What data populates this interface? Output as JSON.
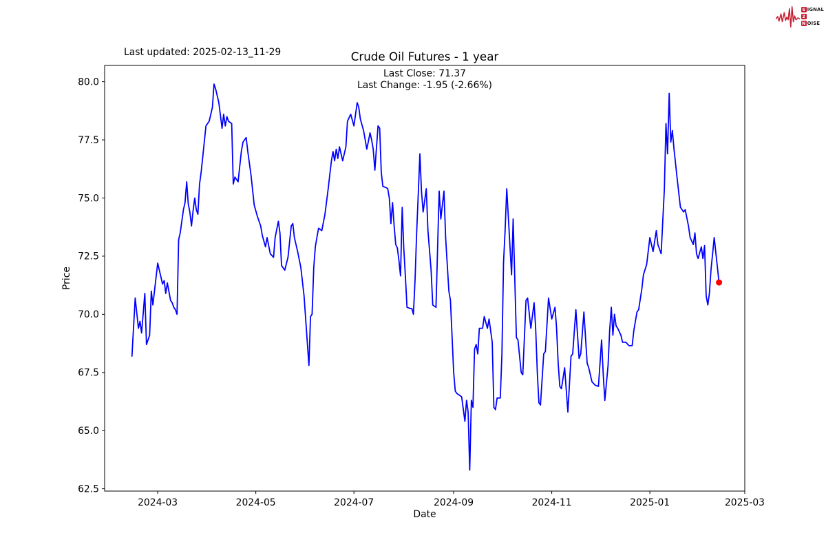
{
  "header": {
    "last_updated": "Last updated: 2025-02-13_11-29",
    "title": "Crude Oil Futures - 1 year",
    "subtitle_line1": "Last Close: 71.37",
    "subtitle_line2": "Last Change: -1.95 (-2.66%)"
  },
  "logo": {
    "signal_initial": "S",
    "signal_rest": "IGNAL",
    "middle": "2",
    "noise_initial": "N",
    "noise_rest": "OISE",
    "red": "#c41e2e",
    "text_color": "#1a1a1a"
  },
  "chart_data": {
    "type": "line",
    "title": "Crude Oil Futures - 1 year",
    "xlabel": "Date",
    "ylabel": "Price",
    "grid": false,
    "legend": "none",
    "last_close": 71.37,
    "last_change": "-1.95 (-2.66%)",
    "xlim": [
      "2024-01-28",
      "2025-03-01"
    ],
    "ylim": [
      62.4,
      80.7
    ],
    "yticks": [
      62.5,
      65.0,
      67.5,
      70.0,
      72.5,
      75.0,
      77.5,
      80.0
    ],
    "xticks": [
      {
        "date": "2024-03-01",
        "label": "2024-03"
      },
      {
        "date": "2024-05-01",
        "label": "2024-05"
      },
      {
        "date": "2024-07-01",
        "label": "2024-07"
      },
      {
        "date": "2024-09-01",
        "label": "2024-09"
      },
      {
        "date": "2024-11-01",
        "label": "2024-11"
      },
      {
        "date": "2025-01-01",
        "label": "2025-01"
      },
      {
        "date": "2025-03-01",
        "label": "2025-03"
      }
    ],
    "marker_color": "#ff0000",
    "series": [
      {
        "name": "Crude Oil Futures price",
        "color": "#0000ff",
        "points": [
          [
            "2024-02-14",
            68.2
          ],
          [
            "2024-02-16",
            70.7
          ],
          [
            "2024-02-18",
            69.4
          ],
          [
            "2024-02-19",
            69.7
          ],
          [
            "2024-02-20",
            69.2
          ],
          [
            "2024-02-22",
            70.9
          ],
          [
            "2024-02-23",
            68.7
          ],
          [
            "2024-02-25",
            69.1
          ],
          [
            "2024-02-26",
            71.0
          ],
          [
            "2024-02-27",
            70.4
          ],
          [
            "2024-03-01",
            72.2
          ],
          [
            "2024-03-03",
            71.6
          ],
          [
            "2024-03-04",
            71.3
          ],
          [
            "2024-03-05",
            71.45
          ],
          [
            "2024-03-06",
            70.9
          ],
          [
            "2024-03-07",
            71.35
          ],
          [
            "2024-03-09",
            70.6
          ],
          [
            "2024-03-10",
            70.5
          ],
          [
            "2024-03-11",
            70.3
          ],
          [
            "2024-03-12",
            70.2
          ],
          [
            "2024-03-13",
            70.0
          ],
          [
            "2024-03-14",
            73.2
          ],
          [
            "2024-03-15",
            73.5
          ],
          [
            "2024-03-17",
            74.5
          ],
          [
            "2024-03-18",
            74.8
          ],
          [
            "2024-03-19",
            75.7
          ],
          [
            "2024-03-20",
            74.75
          ],
          [
            "2024-03-21",
            74.4
          ],
          [
            "2024-03-22",
            73.8
          ],
          [
            "2024-03-23",
            74.45
          ],
          [
            "2024-03-24",
            75.0
          ],
          [
            "2024-03-25",
            74.5
          ],
          [
            "2024-03-26",
            74.3
          ],
          [
            "2024-03-27",
            75.6
          ],
          [
            "2024-03-28",
            76.1
          ],
          [
            "2024-03-29",
            76.75
          ],
          [
            "2024-03-31",
            78.1
          ],
          [
            "2024-04-02",
            78.3
          ],
          [
            "2024-04-04",
            78.9
          ],
          [
            "2024-04-05",
            79.9
          ],
          [
            "2024-04-06",
            79.7
          ],
          [
            "2024-04-08",
            79.1
          ],
          [
            "2024-04-10",
            78.0
          ],
          [
            "2024-04-11",
            78.6
          ],
          [
            "2024-04-12",
            78.1
          ],
          [
            "2024-04-13",
            78.5
          ],
          [
            "2024-04-14",
            78.3
          ],
          [
            "2024-04-16",
            78.2
          ],
          [
            "2024-04-17",
            75.6
          ],
          [
            "2024-04-18",
            75.9
          ],
          [
            "2024-04-20",
            75.7
          ],
          [
            "2024-04-22",
            77.0
          ],
          [
            "2024-04-23",
            77.4
          ],
          [
            "2024-04-25",
            77.6
          ],
          [
            "2024-04-26",
            77.0
          ],
          [
            "2024-04-28",
            76.0
          ],
          [
            "2024-04-30",
            74.7
          ],
          [
            "2024-05-02",
            74.2
          ],
          [
            "2024-05-04",
            73.8
          ],
          [
            "2024-05-05",
            73.4
          ],
          [
            "2024-05-07",
            72.9
          ],
          [
            "2024-05-08",
            73.3
          ],
          [
            "2024-05-10",
            72.6
          ],
          [
            "2024-05-12",
            72.45
          ],
          [
            "2024-05-13",
            73.3
          ],
          [
            "2024-05-15",
            74.0
          ],
          [
            "2024-05-16",
            73.5
          ],
          [
            "2024-05-17",
            72.1
          ],
          [
            "2024-05-19",
            71.9
          ],
          [
            "2024-05-21",
            72.45
          ],
          [
            "2024-05-23",
            73.8
          ],
          [
            "2024-05-24",
            73.9
          ],
          [
            "2024-05-25",
            73.3
          ],
          [
            "2024-05-27",
            72.7
          ],
          [
            "2024-05-29",
            72.0
          ],
          [
            "2024-05-31",
            70.8
          ],
          [
            "2024-06-03",
            67.8
          ],
          [
            "2024-06-04",
            69.9
          ],
          [
            "2024-06-05",
            70.0
          ],
          [
            "2024-06-06",
            72.0
          ],
          [
            "2024-06-07",
            72.9
          ],
          [
            "2024-06-08",
            73.3
          ],
          [
            "2024-06-09",
            73.7
          ],
          [
            "2024-06-11",
            73.6
          ],
          [
            "2024-06-13",
            74.3
          ],
          [
            "2024-06-15",
            75.4
          ],
          [
            "2024-06-16",
            76.0
          ],
          [
            "2024-06-17",
            76.6
          ],
          [
            "2024-06-18",
            77.0
          ],
          [
            "2024-06-19",
            76.6
          ],
          [
            "2024-06-20",
            77.1
          ],
          [
            "2024-06-21",
            76.7
          ],
          [
            "2024-06-22",
            77.2
          ],
          [
            "2024-06-24",
            76.6
          ],
          [
            "2024-06-26",
            77.2
          ],
          [
            "2024-06-27",
            78.3
          ],
          [
            "2024-06-29",
            78.6
          ],
          [
            "2024-07-01",
            78.1
          ],
          [
            "2024-07-03",
            79.1
          ],
          [
            "2024-07-04",
            78.9
          ],
          [
            "2024-07-05",
            78.4
          ],
          [
            "2024-07-07",
            77.9
          ],
          [
            "2024-07-09",
            77.1
          ],
          [
            "2024-07-11",
            77.8
          ],
          [
            "2024-07-12",
            77.5
          ],
          [
            "2024-07-13",
            77.1
          ],
          [
            "2024-07-14",
            76.2
          ],
          [
            "2024-07-16",
            78.1
          ],
          [
            "2024-07-17",
            78.0
          ],
          [
            "2024-07-18",
            76.1
          ],
          [
            "2024-07-19",
            75.5
          ],
          [
            "2024-07-21",
            75.45
          ],
          [
            "2024-07-22",
            75.4
          ],
          [
            "2024-07-23",
            75.0
          ],
          [
            "2024-07-24",
            73.9
          ],
          [
            "2024-07-25",
            74.8
          ],
          [
            "2024-07-26",
            73.8
          ],
          [
            "2024-07-27",
            73.0
          ],
          [
            "2024-07-28",
            72.85
          ],
          [
            "2024-07-29",
            72.3
          ],
          [
            "2024-07-30",
            71.65
          ],
          [
            "2024-07-31",
            74.6
          ],
          [
            "2024-08-01",
            72.85
          ],
          [
            "2024-08-02",
            71.6
          ],
          [
            "2024-08-03",
            70.3
          ],
          [
            "2024-08-05",
            70.25
          ],
          [
            "2024-08-06",
            70.25
          ],
          [
            "2024-08-07",
            70.0
          ],
          [
            "2024-08-08",
            71.5
          ],
          [
            "2024-08-09",
            73.5
          ],
          [
            "2024-08-10",
            75.2
          ],
          [
            "2024-08-11",
            76.9
          ],
          [
            "2024-08-12",
            75.3
          ],
          [
            "2024-08-13",
            74.4
          ],
          [
            "2024-08-15",
            75.4
          ],
          [
            "2024-08-16",
            73.6
          ],
          [
            "2024-08-18",
            71.9
          ],
          [
            "2024-08-19",
            70.4
          ],
          [
            "2024-08-21",
            70.3
          ],
          [
            "2024-08-23",
            75.3
          ],
          [
            "2024-08-24",
            74.1
          ],
          [
            "2024-08-26",
            75.3
          ],
          [
            "2024-08-27",
            73.3
          ],
          [
            "2024-08-29",
            71.0
          ],
          [
            "2024-08-30",
            70.6
          ],
          [
            "2024-09-01",
            67.5
          ],
          [
            "2024-09-02",
            66.7
          ],
          [
            "2024-09-03",
            66.6
          ],
          [
            "2024-09-05",
            66.5
          ],
          [
            "2024-09-06",
            66.45
          ],
          [
            "2024-09-08",
            65.4
          ],
          [
            "2024-09-09",
            66.3
          ],
          [
            "2024-09-10",
            65.8
          ],
          [
            "2024-09-11",
            63.3
          ],
          [
            "2024-09-12",
            66.3
          ],
          [
            "2024-09-13",
            66.0
          ],
          [
            "2024-09-14",
            68.5
          ],
          [
            "2024-09-15",
            68.7
          ],
          [
            "2024-09-16",
            68.3
          ],
          [
            "2024-09-17",
            69.4
          ],
          [
            "2024-09-19",
            69.4
          ],
          [
            "2024-09-20",
            69.9
          ],
          [
            "2024-09-22",
            69.4
          ],
          [
            "2024-09-23",
            69.8
          ],
          [
            "2024-09-25",
            68.8
          ],
          [
            "2024-09-26",
            66.0
          ],
          [
            "2024-09-27",
            65.9
          ],
          [
            "2024-09-28",
            66.4
          ],
          [
            "2024-09-30",
            66.4
          ],
          [
            "2024-10-01",
            68.3
          ],
          [
            "2024-10-02",
            72.2
          ],
          [
            "2024-10-03",
            73.6
          ],
          [
            "2024-10-04",
            75.4
          ],
          [
            "2024-10-07",
            71.7
          ],
          [
            "2024-10-08",
            74.1
          ],
          [
            "2024-10-10",
            69.0
          ],
          [
            "2024-10-11",
            68.9
          ],
          [
            "2024-10-13",
            67.5
          ],
          [
            "2024-10-14",
            67.4
          ],
          [
            "2024-10-16",
            70.6
          ],
          [
            "2024-10-17",
            70.7
          ],
          [
            "2024-10-19",
            69.4
          ],
          [
            "2024-10-21",
            70.5
          ],
          [
            "2024-10-22",
            69.4
          ],
          [
            "2024-10-23",
            67.5
          ],
          [
            "2024-10-24",
            66.2
          ],
          [
            "2024-10-25",
            66.1
          ],
          [
            "2024-10-27",
            68.3
          ],
          [
            "2024-10-28",
            68.4
          ],
          [
            "2024-10-30",
            70.7
          ],
          [
            "2024-11-01",
            69.8
          ],
          [
            "2024-11-03",
            70.3
          ],
          [
            "2024-11-04",
            69.4
          ],
          [
            "2024-11-05",
            67.9
          ],
          [
            "2024-11-06",
            66.9
          ],
          [
            "2024-11-07",
            66.8
          ],
          [
            "2024-11-09",
            67.7
          ],
          [
            "2024-11-11",
            65.8
          ],
          [
            "2024-11-13",
            68.2
          ],
          [
            "2024-11-14",
            68.3
          ],
          [
            "2024-11-16",
            70.2
          ],
          [
            "2024-11-18",
            68.1
          ],
          [
            "2024-11-19",
            68.3
          ],
          [
            "2024-11-21",
            70.1
          ],
          [
            "2024-11-23",
            67.9
          ],
          [
            "2024-11-24",
            67.7
          ],
          [
            "2024-11-26",
            67.1
          ],
          [
            "2024-11-28",
            66.95
          ],
          [
            "2024-11-30",
            66.9
          ],
          [
            "2024-12-02",
            68.9
          ],
          [
            "2024-12-03",
            67.4
          ],
          [
            "2024-12-04",
            66.3
          ],
          [
            "2024-12-06",
            67.8
          ],
          [
            "2024-12-07",
            69.3
          ],
          [
            "2024-12-08",
            70.3
          ],
          [
            "2024-12-09",
            69.1
          ],
          [
            "2024-12-10",
            70.0
          ],
          [
            "2024-12-11",
            69.5
          ],
          [
            "2024-12-12",
            69.4
          ],
          [
            "2024-12-14",
            69.1
          ],
          [
            "2024-12-15",
            68.8
          ],
          [
            "2024-12-17",
            68.8
          ],
          [
            "2024-12-19",
            68.65
          ],
          [
            "2024-12-21",
            68.65
          ],
          [
            "2024-12-22",
            69.3
          ],
          [
            "2024-12-23",
            69.7
          ],
          [
            "2024-12-24",
            70.1
          ],
          [
            "2024-12-25",
            70.2
          ],
          [
            "2024-12-27",
            71.1
          ],
          [
            "2024-12-28",
            71.7
          ],
          [
            "2024-12-30",
            72.15
          ],
          [
            "2025-01-01",
            73.3
          ],
          [
            "2025-01-03",
            72.7
          ],
          [
            "2025-01-05",
            73.6
          ],
          [
            "2025-01-06",
            73.0
          ],
          [
            "2025-01-08",
            72.6
          ],
          [
            "2025-01-10",
            75.4
          ],
          [
            "2025-01-11",
            78.2
          ],
          [
            "2025-01-12",
            76.9
          ],
          [
            "2025-01-13",
            79.5
          ],
          [
            "2025-01-14",
            77.4
          ],
          [
            "2025-01-15",
            77.9
          ],
          [
            "2025-01-16",
            77.1
          ],
          [
            "2025-01-18",
            75.8
          ],
          [
            "2025-01-20",
            74.6
          ],
          [
            "2025-01-22",
            74.4
          ],
          [
            "2025-01-23",
            74.5
          ],
          [
            "2025-01-25",
            73.8
          ],
          [
            "2025-01-26",
            73.3
          ],
          [
            "2025-01-28",
            73.0
          ],
          [
            "2025-01-29",
            73.5
          ],
          [
            "2025-01-30",
            72.6
          ],
          [
            "2025-01-31",
            72.4
          ],
          [
            "2025-02-02",
            72.9
          ],
          [
            "2025-02-03",
            72.4
          ],
          [
            "2025-02-04",
            72.95
          ],
          [
            "2025-02-05",
            70.8
          ],
          [
            "2025-02-06",
            70.4
          ],
          [
            "2025-02-07",
            70.9
          ],
          [
            "2025-02-08",
            71.9
          ],
          [
            "2025-02-10",
            73.3
          ],
          [
            "2025-02-13",
            71.37
          ]
        ]
      }
    ]
  }
}
